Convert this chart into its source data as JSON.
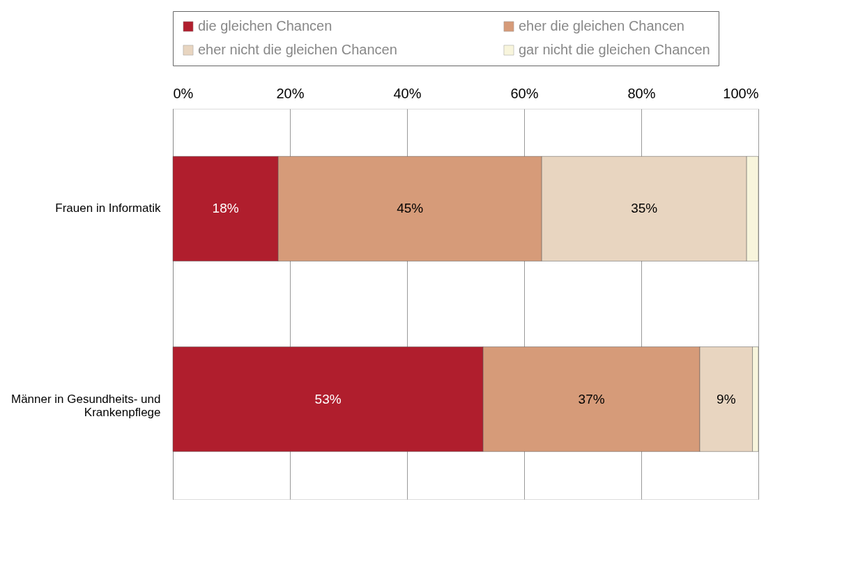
{
  "chart_data": {
    "type": "bar",
    "orientation": "horizontal",
    "stacked": true,
    "categories": [
      "Frauen in Informatik",
      "Männer in Gesundheits- und Krankenpflege"
    ],
    "series": [
      {
        "name": "die gleichen Chancen",
        "color": "#b01e2d",
        "values": [
          18,
          53
        ],
        "value_labels": [
          "18%",
          "53%"
        ]
      },
      {
        "name": "eher die gleichen Chancen",
        "color": "#d69b79",
        "values": [
          45,
          37
        ],
        "value_labels": [
          "45%",
          "37%"
        ]
      },
      {
        "name": "eher nicht die gleichen Chancen",
        "color": "#e8d5c0",
        "values": [
          35,
          9
        ],
        "value_labels": [
          "35%",
          "9%"
        ]
      },
      {
        "name": "gar nicht die gleichen Chancen",
        "color": "#f8f5dc",
        "values": [
          2,
          1
        ],
        "value_labels": [
          null,
          null
        ]
      }
    ],
    "xlim": [
      0,
      100
    ],
    "xticks": [
      {
        "value": 0,
        "label": "0%"
      },
      {
        "value": 20,
        "label": "20%"
      },
      {
        "value": 40,
        "label": "40%"
      },
      {
        "value": 60,
        "label": "60%"
      },
      {
        "value": 80,
        "label": "80%"
      },
      {
        "value": 100,
        "label": "100%"
      }
    ],
    "grid": "x",
    "legend": "top"
  }
}
